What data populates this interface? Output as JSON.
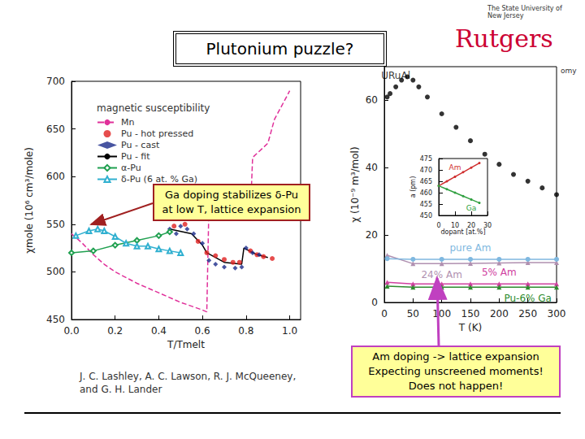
{
  "slide": {
    "title": "Plutonium puzzle?",
    "logo": {
      "tagline": "The State University of New Jersey",
      "name": "Rutgers"
    },
    "corner_text": "omy",
    "citation": [
      "J. C. Lashley, A. C. Lawson, R. J. McQueeney,",
      "and G. H. Lander"
    ],
    "callouts": [
      [
        "Ga doping stabilizes δ-Pu",
        "at low T, lattice expansion"
      ],
      [
        "Am doping -> lattice expansion",
        "Expecting unscreened moments!",
        "Does not happen!"
      ]
    ]
  },
  "chart_data": [
    {
      "type": "line",
      "title": "magnetic susceptibility",
      "x_label": "T/Tmelt",
      "y_label": "χmole (10⁶ cm³/mole)",
      "xlim": [
        0,
        1.05
      ],
      "xticks": [
        {
          "value": 0,
          "label": "0.0"
        },
        0.2,
        0.4,
        0.6,
        0.8,
        {
          "value": 1,
          "label": "1.0"
        }
      ],
      "ylim": [
        450,
        700
      ],
      "yticks": [
        450,
        500,
        550,
        600,
        650,
        700
      ],
      "grid": false,
      "legend": "upper left",
      "series": [
        {
          "name": "Mn",
          "type": "line",
          "color": "#e0309a",
          "marker": "none",
          "line_style": "dashed",
          "x": [
            0,
            0.05,
            0.1,
            0.15,
            0.2,
            0.3,
            0.4,
            0.5,
            0.6,
            0.62,
            0.63,
            0.7,
            0.75,
            0.82,
            0.83,
            0.9,
            0.93,
            1.0
          ],
          "values": [
            540,
            530,
            518,
            508,
            500,
            488,
            478,
            468,
            460,
            458,
            572,
            568,
            565,
            562,
            620,
            635,
            660,
            690
          ]
        },
        {
          "name": "Pu - hot pressed",
          "type": "scatter",
          "color": "#e02020",
          "marker": "circle",
          "x": [
            0.47,
            0.52,
            0.55,
            0.58,
            0.62,
            0.66,
            0.7,
            0.74,
            0.77,
            0.82,
            0.85,
            0.88,
            0.92
          ],
          "values": [
            548,
            550,
            560,
            532,
            520,
            517,
            513,
            510,
            510,
            522,
            518,
            516,
            514
          ]
        },
        {
          "name": "Pu - cast",
          "type": "scatter",
          "color": "#1a2a8a",
          "marker": "diamond",
          "x": [
            0.45,
            0.48,
            0.5,
            0.53,
            0.56,
            0.6,
            0.63,
            0.66,
            0.7,
            0.75,
            0.78,
            0.8,
            0.83,
            0.86
          ],
          "values": [
            545,
            540,
            548,
            545,
            540,
            530,
            512,
            508,
            505,
            504,
            505,
            525,
            520,
            518
          ]
        },
        {
          "name": "Pu - fit",
          "type": "line",
          "color": "#000000",
          "marker": "none",
          "line_style": "solid",
          "x": [
            0.45,
            0.55,
            0.6,
            0.62,
            0.7,
            0.78,
            0.79,
            0.85,
            0.9
          ],
          "values": [
            545,
            540,
            528,
            520,
            510,
            508,
            525,
            518,
            515
          ]
        },
        {
          "name": "α-Pu",
          "type": "line",
          "color": "#20a050",
          "marker": "open_diamond",
          "line_style": "solid",
          "x": [
            0,
            0.1,
            0.2,
            0.3,
            0.4,
            0.45
          ],
          "values": [
            520,
            522,
            528,
            533,
            538,
            542
          ]
        },
        {
          "name": "δ-Pu (6 at. % Ga)",
          "type": "line",
          "color": "#30b0d0",
          "marker": "open_triangle",
          "line_style": "solid",
          "x": [
            0.02,
            0.08,
            0.12,
            0.15,
            0.2,
            0.25,
            0.3,
            0.35,
            0.4,
            0.45,
            0.5
          ],
          "values": [
            538,
            543,
            545,
            543,
            537,
            530,
            527,
            527,
            524,
            522,
            520
          ]
        }
      ]
    },
    {
      "type": "line",
      "x_label": "T (K)",
      "y_label": "χ (10⁻⁹ m³/mol)",
      "xlim": [
        0,
        300
      ],
      "xticks": [
        0,
        50,
        100,
        150,
        200,
        250,
        300
      ],
      "ylim": [
        0,
        70
      ],
      "yticks": [
        0,
        20,
        40,
        60
      ],
      "grid": false,
      "series": [
        {
          "name": "URuAl",
          "type": "scatter",
          "color": "#000000",
          "marker": "circle",
          "x": [
            5,
            10,
            20,
            30,
            40,
            50,
            60,
            75,
            100,
            125,
            150,
            175,
            200,
            225,
            250,
            275,
            300
          ],
          "values": [
            61,
            62,
            64,
            66,
            67,
            66,
            64,
            61,
            56,
            52,
            48,
            44,
            41,
            38,
            36,
            34,
            32
          ]
        },
        {
          "name": "24% Am",
          "type": "line",
          "color": "#b090b0",
          "marker": "triangle",
          "line_style": "solid",
          "x": [
            5,
            50,
            100,
            150,
            200,
            250,
            300
          ],
          "values": [
            14,
            11.5,
            11.5,
            11.6,
            11.7,
            11.8,
            11.8
          ]
        },
        {
          "name": "pure Am",
          "type": "line",
          "color": "#7fb8e0",
          "marker": "circle",
          "line_style": "solid",
          "x": [
            5,
            50,
            100,
            150,
            200,
            250,
            300
          ],
          "values": [
            13,
            12.8,
            12.8,
            12.8,
            12.8,
            12.8,
            12.8
          ]
        },
        {
          "name": "5% Am",
          "type": "line",
          "color": "#d040a0",
          "marker": "triangle",
          "line_style": "solid",
          "x": [
            5,
            50,
            100,
            150,
            200,
            250,
            300
          ],
          "values": [
            6,
            5.5,
            5.5,
            5.5,
            5.5,
            5.5,
            5.5
          ]
        },
        {
          "name": "Pu-6% Ga",
          "type": "line",
          "color": "#2e8b2e",
          "marker": "triangle",
          "line_style": "solid",
          "x": [
            5,
            50,
            100,
            150,
            200,
            250,
            300
          ],
          "values": [
            4.8,
            4.5,
            4.5,
            4.5,
            4.5,
            4.5,
            4.5
          ]
        }
      ]
    },
    {
      "type": "line",
      "x_label": "dopant [at.%]",
      "y_label": "a (pm)",
      "xlim": [
        0,
        30
      ],
      "xticks": [
        0,
        10,
        20,
        30
      ],
      "ylim": [
        450,
        475
      ],
      "yticks": [
        450,
        455,
        460,
        465,
        470,
        475
      ],
      "grid": false,
      "series": [
        {
          "name": "Am",
          "type": "line",
          "color": "#d03030",
          "marker": "circle",
          "line_style": "solid",
          "x": [
            0,
            5,
            10,
            15,
            20,
            25
          ],
          "values": [
            463,
            465,
            467,
            469,
            471,
            473
          ]
        },
        {
          "name": "Ga",
          "type": "line",
          "color": "#30a040",
          "marker": "circle",
          "line_style": "solid",
          "x": [
            0,
            5,
            10,
            15,
            20,
            25
          ],
          "values": [
            463,
            461.5,
            460,
            458.5,
            457,
            455.5
          ]
        }
      ]
    }
  ]
}
